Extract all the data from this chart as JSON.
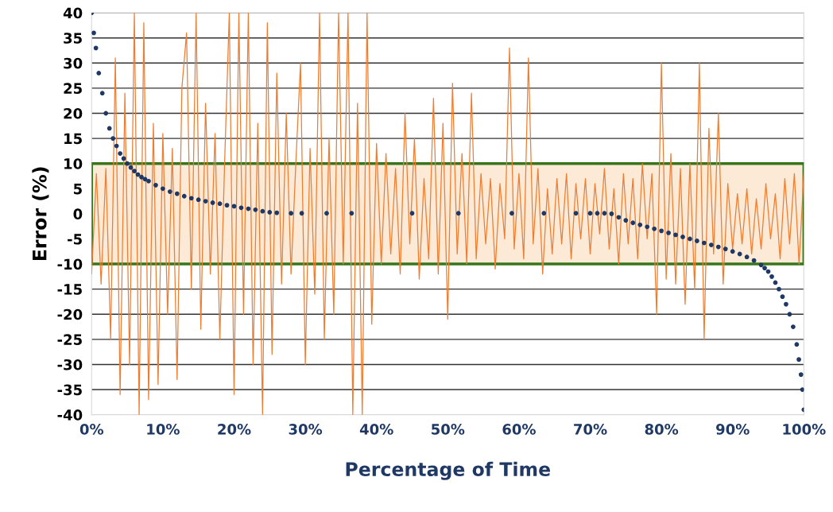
{
  "chart_data": {
    "type": "line",
    "xlabel": "Percentage of Time",
    "ylabel": "Error (%)",
    "xlim": [
      0,
      100
    ],
    "ylim": [
      -40,
      40
    ],
    "xticks": [
      {
        "value": 0,
        "label": "0%"
      },
      {
        "value": 10,
        "label": "10%"
      },
      {
        "value": 20,
        "label": "20%"
      },
      {
        "value": 30,
        "label": "30%"
      },
      {
        "value": 40,
        "label": "40%"
      },
      {
        "value": 50,
        "label": "50%"
      },
      {
        "value": 60,
        "label": "60%"
      },
      {
        "value": 70,
        "label": "70%"
      },
      {
        "value": 80,
        "label": "80%"
      },
      {
        "value": 90,
        "label": "90%"
      },
      {
        "value": 100,
        "label": "100%"
      }
    ],
    "yticks": [
      -40,
      -35,
      -30,
      -25,
      -20,
      -15,
      -10,
      -5,
      0,
      5,
      10,
      15,
      20,
      25,
      30,
      35,
      40
    ],
    "grid": "y",
    "bands": [
      {
        "axis": "y",
        "from": -10,
        "to": 10,
        "color": "#fce9d6"
      }
    ],
    "series": [
      {
        "color": "#ed7d31",
        "x": [
          0,
          0.67,
          1.33,
          2,
          2.67,
          3.33,
          4,
          4.67,
          5.33,
          6,
          6.67,
          7.33,
          8,
          8.67,
          9.33,
          10,
          10.67,
          11.33,
          12,
          12.67,
          13.33,
          14,
          14.67,
          15.33,
          16,
          16.67,
          17.33,
          18,
          18.67,
          19.33,
          20,
          20.67,
          21.33,
          22,
          22.67,
          23.33,
          24,
          24.67,
          25.33,
          26,
          26.67,
          27.33,
          28,
          28.67,
          29.33,
          30,
          30.67,
          31.33,
          32,
          32.67,
          33.33,
          34,
          34.67,
          35.33,
          36,
          36.67,
          37.33,
          38,
          38.67,
          39.33,
          40,
          40.67,
          41.33,
          42,
          42.67,
          43.33,
          44,
          44.67,
          45.33,
          46,
          46.67,
          47.33,
          48,
          48.67,
          49.33,
          50,
          50.67,
          51.33,
          52,
          52.67,
          53.33,
          54,
          54.67,
          55.33,
          56,
          56.67,
          57.33,
          58,
          58.67,
          59.33,
          60,
          60.67,
          61.33,
          62,
          62.67,
          63.33,
          64,
          64.67,
          65.33,
          66,
          66.67,
          67.33,
          68,
          68.67,
          69.33,
          70,
          70.67,
          71.33,
          72,
          72.67,
          73.33,
          74,
          74.67,
          75.33,
          76,
          76.67,
          77.33,
          78,
          78.67,
          79.33,
          80,
          80.67,
          81.33,
          82,
          82.67,
          83.33,
          84,
          84.67,
          85.33,
          86,
          86.67,
          87.33,
          88,
          88.67,
          89.33,
          90,
          90.67,
          91.33,
          92,
          92.67,
          93.33,
          94,
          94.67,
          95.33,
          96,
          96.67,
          97.33,
          98,
          98.67,
          99.33,
          100
        ],
        "values": [
          -12,
          8,
          -14,
          9,
          -25,
          31,
          -36,
          24,
          -30,
          40,
          -40,
          38,
          -37,
          18,
          -34,
          16,
          -20,
          13,
          -33,
          25,
          36,
          -15,
          40,
          -23,
          22,
          -12,
          16,
          -25,
          10,
          40,
          -36,
          40,
          -20,
          40,
          -30,
          18,
          -40,
          38,
          -28,
          28,
          -14,
          20,
          -12,
          10,
          30,
          -30,
          13,
          -16,
          40,
          -25,
          15,
          -20,
          40,
          -10,
          40,
          -40,
          22,
          -40,
          40,
          -22,
          14,
          -10,
          12,
          -8,
          9,
          -12,
          20,
          -6,
          15,
          -13,
          7,
          -9,
          23,
          -12,
          18,
          -21,
          26,
          -8,
          12,
          -10,
          24,
          -9,
          8,
          -6,
          7,
          -11,
          6,
          -5,
          33,
          -7,
          8,
          -9,
          31,
          -6,
          9,
          -12,
          5,
          -8,
          7,
          -6,
          8,
          -9,
          6,
          -5,
          7,
          -8,
          6,
          -4,
          9,
          -7,
          5,
          -10,
          8,
          -6,
          7,
          -9,
          10,
          -5,
          8,
          -20,
          30,
          -13,
          12,
          -14,
          9,
          -18,
          10,
          -15,
          30,
          -25,
          17,
          -8,
          20,
          -14,
          6,
          -7,
          4,
          -6,
          5,
          -8,
          3,
          -7,
          6,
          -5,
          4,
          -9,
          7,
          -6,
          8,
          -10,
          8
        ]
      },
      {
        "type": "scatter",
        "color": "#1f3864",
        "marker": "circle",
        "x": [
          0,
          0.3,
          0.6,
          1,
          1.5,
          2,
          2.5,
          3,
          3.5,
          4,
          4.5,
          5,
          5.5,
          6,
          6.5,
          7,
          7.5,
          8,
          9,
          10,
          11,
          12,
          13,
          14,
          15,
          16,
          17,
          18,
          19,
          20,
          21,
          22,
          23,
          24,
          25,
          26,
          28,
          29.5,
          33,
          36.5,
          45,
          51.5,
          59,
          63.5,
          68,
          70,
          71,
          72,
          73,
          74,
          75,
          76,
          77,
          78,
          79,
          80,
          81,
          82,
          83,
          84,
          85,
          86,
          87,
          88,
          89,
          90,
          91,
          92,
          93,
          94,
          94.5,
          95,
          95.5,
          96,
          96.5,
          97,
          97.5,
          98,
          98.5,
          99,
          99.3,
          99.6,
          99.8,
          100
        ],
        "values": [
          40,
          36,
          33,
          28,
          24,
          20,
          17,
          15,
          13.5,
          12,
          11,
          10,
          9.2,
          8.5,
          7.8,
          7.3,
          6.9,
          6.5,
          5.7,
          5,
          4.4,
          4,
          3.5,
          3.1,
          2.8,
          2.5,
          2.2,
          2,
          1.7,
          1.5,
          1.2,
          1,
          0.8,
          0.5,
          0.3,
          0.2,
          0.1,
          0.1,
          0.1,
          0.1,
          0.1,
          0.1,
          0.1,
          0.1,
          0.1,
          0.1,
          0.1,
          0.1,
          0,
          -0.7,
          -1.3,
          -1.8,
          -2.2,
          -2.6,
          -3,
          -3.4,
          -3.8,
          -4.2,
          -4.6,
          -5,
          -5.4,
          -5.8,
          -6.2,
          -6.6,
          -7,
          -7.5,
          -8,
          -8.6,
          -9.3,
          -10.2,
          -10.8,
          -11.5,
          -12.5,
          -13.7,
          -15,
          -16.5,
          -18,
          -20,
          -22.5,
          -26,
          -29,
          -32,
          -35,
          -39
        ]
      }
    ]
  }
}
